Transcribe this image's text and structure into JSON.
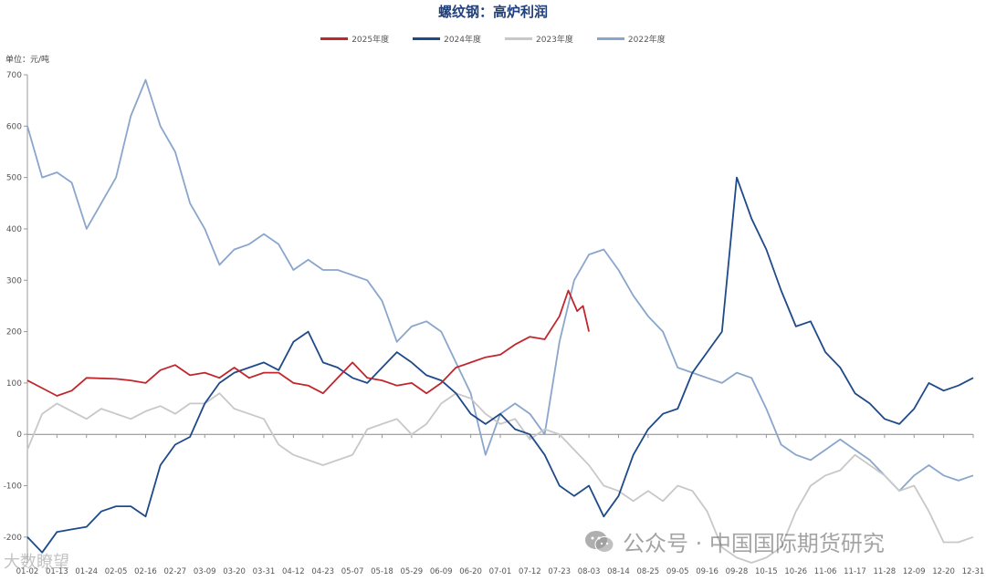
{
  "chart_data": {
    "type": "line",
    "title": "螺纹钢：高炉利润",
    "unit": "单位：元/吨",
    "ylim": [
      -250,
      700
    ],
    "yticks": [
      -200,
      -100,
      0,
      100,
      200,
      300,
      400,
      500,
      600,
      700
    ],
    "x_ticks": [
      "01-02",
      "01-13",
      "01-24",
      "02-05",
      "02-16",
      "02-27",
      "03-09",
      "03-20",
      "03-31",
      "04-12",
      "04-23",
      "05-07",
      "05-18",
      "05-29",
      "06-09",
      "06-20",
      "07-01",
      "07-12",
      "07-23",
      "08-03",
      "08-14",
      "08-25",
      "09-05",
      "09-16",
      "09-28",
      "10-15",
      "10-26",
      "11-06",
      "11-17",
      "11-28",
      "12-09",
      "12-20",
      "12-31"
    ],
    "legend_position": "top-center",
    "grid": false,
    "series": [
      {
        "name": "2025年度",
        "color": "#c0272d",
        "points": [
          [
            0,
            105
          ],
          [
            0.5,
            90
          ],
          [
            1,
            75
          ],
          [
            1.5,
            85
          ],
          [
            2,
            110
          ],
          [
            3,
            108
          ],
          [
            3.5,
            105
          ],
          [
            4,
            100
          ],
          [
            4.5,
            125
          ],
          [
            5,
            135
          ],
          [
            5.5,
            115
          ],
          [
            6,
            120
          ],
          [
            6.5,
            110
          ],
          [
            7,
            130
          ],
          [
            7.5,
            110
          ],
          [
            8,
            120
          ],
          [
            8.5,
            120
          ],
          [
            9,
            100
          ],
          [
            9.5,
            95
          ],
          [
            10,
            80
          ],
          [
            10.5,
            110
          ],
          [
            11,
            140
          ],
          [
            11.5,
            110
          ],
          [
            12,
            105
          ],
          [
            12.5,
            95
          ],
          [
            13,
            100
          ],
          [
            13.5,
            80
          ],
          [
            14,
            100
          ],
          [
            14.5,
            130
          ],
          [
            15,
            140
          ],
          [
            15.5,
            150
          ],
          [
            16,
            155
          ],
          [
            16.5,
            175
          ],
          [
            17,
            190
          ],
          [
            17.5,
            185
          ],
          [
            18,
            230
          ],
          [
            18.3,
            280
          ],
          [
            18.6,
            240
          ],
          [
            18.8,
            250
          ],
          [
            19,
            200
          ]
        ]
      },
      {
        "name": "2024年度",
        "color": "#1f4a8a",
        "points": [
          [
            0,
            -200
          ],
          [
            0.5,
            -230
          ],
          [
            1,
            -190
          ],
          [
            1.5,
            -185
          ],
          [
            2,
            -180
          ],
          [
            2.5,
            -150
          ],
          [
            3,
            -140
          ],
          [
            3.5,
            -140
          ],
          [
            4,
            -160
          ],
          [
            4.5,
            -60
          ],
          [
            5,
            -20
          ],
          [
            5.5,
            -5
          ],
          [
            6,
            60
          ],
          [
            6.5,
            100
          ],
          [
            7,
            120
          ],
          [
            7.5,
            130
          ],
          [
            8,
            140
          ],
          [
            8.5,
            125
          ],
          [
            9,
            180
          ],
          [
            9.5,
            200
          ],
          [
            10,
            140
          ],
          [
            10.5,
            130
          ],
          [
            11,
            110
          ],
          [
            11.5,
            100
          ],
          [
            12,
            130
          ],
          [
            12.5,
            160
          ],
          [
            13,
            140
          ],
          [
            13.5,
            115
          ],
          [
            14,
            105
          ],
          [
            14.5,
            80
          ],
          [
            15,
            40
          ],
          [
            15.5,
            20
          ],
          [
            16,
            40
          ],
          [
            16.5,
            10
          ],
          [
            17,
            0
          ],
          [
            17.5,
            -40
          ],
          [
            18,
            -100
          ],
          [
            18.5,
            -120
          ],
          [
            19,
            -100
          ],
          [
            19.5,
            -160
          ],
          [
            20,
            -120
          ],
          [
            20.5,
            -40
          ],
          [
            21,
            10
          ],
          [
            21.5,
            40
          ],
          [
            22,
            50
          ],
          [
            22.5,
            120
          ],
          [
            23,
            160
          ],
          [
            23.5,
            200
          ],
          [
            24,
            500
          ],
          [
            24.5,
            420
          ],
          [
            25,
            360
          ],
          [
            25.5,
            280
          ],
          [
            26,
            210
          ],
          [
            26.5,
            220
          ],
          [
            27,
            160
          ],
          [
            27.5,
            130
          ],
          [
            28,
            80
          ],
          [
            28.5,
            60
          ],
          [
            29,
            30
          ],
          [
            29.5,
            20
          ],
          [
            30,
            50
          ],
          [
            30.5,
            100
          ],
          [
            31,
            85
          ],
          [
            31.5,
            95
          ],
          [
            32,
            110
          ]
        ]
      },
      {
        "name": "2023年度",
        "color": "#c8c8c8",
        "points": [
          [
            0,
            -30
          ],
          [
            0.5,
            40
          ],
          [
            1,
            60
          ],
          [
            1.5,
            45
          ],
          [
            2,
            30
          ],
          [
            2.5,
            50
          ],
          [
            3,
            40
          ],
          [
            3.5,
            30
          ],
          [
            4,
            45
          ],
          [
            4.5,
            55
          ],
          [
            5,
            40
          ],
          [
            5.5,
            60
          ],
          [
            6,
            60
          ],
          [
            6.5,
            80
          ],
          [
            7,
            50
          ],
          [
            7.5,
            40
          ],
          [
            8,
            30
          ],
          [
            8.5,
            -20
          ],
          [
            9,
            -40
          ],
          [
            9.5,
            -50
          ],
          [
            10,
            -60
          ],
          [
            10.5,
            -50
          ],
          [
            11,
            -40
          ],
          [
            11.5,
            10
          ],
          [
            12,
            20
          ],
          [
            12.5,
            30
          ],
          [
            13,
            0
          ],
          [
            13.5,
            20
          ],
          [
            14,
            60
          ],
          [
            14.5,
            80
          ],
          [
            15,
            70
          ],
          [
            15.5,
            40
          ],
          [
            16,
            20
          ],
          [
            16.5,
            30
          ],
          [
            17,
            -10
          ],
          [
            17.5,
            10
          ],
          [
            18,
            0
          ],
          [
            18.5,
            -30
          ],
          [
            19,
            -60
          ],
          [
            19.5,
            -100
          ],
          [
            20,
            -110
          ],
          [
            20.5,
            -130
          ],
          [
            21,
            -110
          ],
          [
            21.5,
            -130
          ],
          [
            22,
            -100
          ],
          [
            22.5,
            -110
          ],
          [
            23,
            -150
          ],
          [
            23.5,
            -220
          ],
          [
            24,
            -240
          ],
          [
            24.5,
            -250
          ],
          [
            25,
            -240
          ],
          [
            25.5,
            -220
          ],
          [
            26,
            -150
          ],
          [
            26.5,
            -100
          ],
          [
            27,
            -80
          ],
          [
            27.5,
            -70
          ],
          [
            28,
            -40
          ],
          [
            28.5,
            -60
          ],
          [
            29,
            -80
          ],
          [
            29.5,
            -110
          ],
          [
            30,
            -100
          ],
          [
            30.5,
            -150
          ],
          [
            31,
            -210
          ],
          [
            31.5,
            -210
          ],
          [
            32,
            -200
          ]
        ]
      },
      {
        "name": "2022年度",
        "color": "#8aa6cc",
        "points": [
          [
            0,
            600
          ],
          [
            0.5,
            500
          ],
          [
            1,
            510
          ],
          [
            1.5,
            490
          ],
          [
            2,
            400
          ],
          [
            2.5,
            450
          ],
          [
            3,
            500
          ],
          [
            3.5,
            620
          ],
          [
            4,
            690
          ],
          [
            4.5,
            600
          ],
          [
            5,
            550
          ],
          [
            5.5,
            450
          ],
          [
            6,
            400
          ],
          [
            6.5,
            330
          ],
          [
            7,
            360
          ],
          [
            7.5,
            370
          ],
          [
            8,
            390
          ],
          [
            8.5,
            370
          ],
          [
            9,
            320
          ],
          [
            9.5,
            340
          ],
          [
            10,
            320
          ],
          [
            10.5,
            320
          ],
          [
            11,
            310
          ],
          [
            11.5,
            300
          ],
          [
            12,
            260
          ],
          [
            12.5,
            180
          ],
          [
            13,
            210
          ],
          [
            13.5,
            220
          ],
          [
            14,
            200
          ],
          [
            14.5,
            140
          ],
          [
            15,
            80
          ],
          [
            15.5,
            -40
          ],
          [
            16,
            40
          ],
          [
            16.5,
            60
          ],
          [
            17,
            40
          ],
          [
            17.5,
            0
          ],
          [
            18,
            180
          ],
          [
            18.5,
            300
          ],
          [
            19,
            350
          ],
          [
            19.5,
            360
          ],
          [
            20,
            320
          ],
          [
            20.5,
            270
          ],
          [
            21,
            230
          ],
          [
            21.5,
            200
          ],
          [
            22,
            130
          ],
          [
            22.5,
            120
          ],
          [
            23,
            110
          ],
          [
            23.5,
            100
          ],
          [
            24,
            120
          ],
          [
            24.5,
            110
          ],
          [
            25,
            50
          ],
          [
            25.5,
            -20
          ],
          [
            26,
            -40
          ],
          [
            26.5,
            -50
          ],
          [
            27,
            -30
          ],
          [
            27.5,
            -10
          ],
          [
            28,
            -30
          ],
          [
            28.5,
            -50
          ],
          [
            29,
            -80
          ],
          [
            29.5,
            -110
          ],
          [
            30,
            -80
          ],
          [
            30.5,
            -60
          ],
          [
            31,
            -80
          ],
          [
            31.5,
            -90
          ],
          [
            32,
            -80
          ]
        ]
      }
    ]
  },
  "watermark": {
    "text": "公众号 · 中国国际期货研究",
    "icon": "wechat-icon",
    "corner_text": "大数瞭望"
  }
}
